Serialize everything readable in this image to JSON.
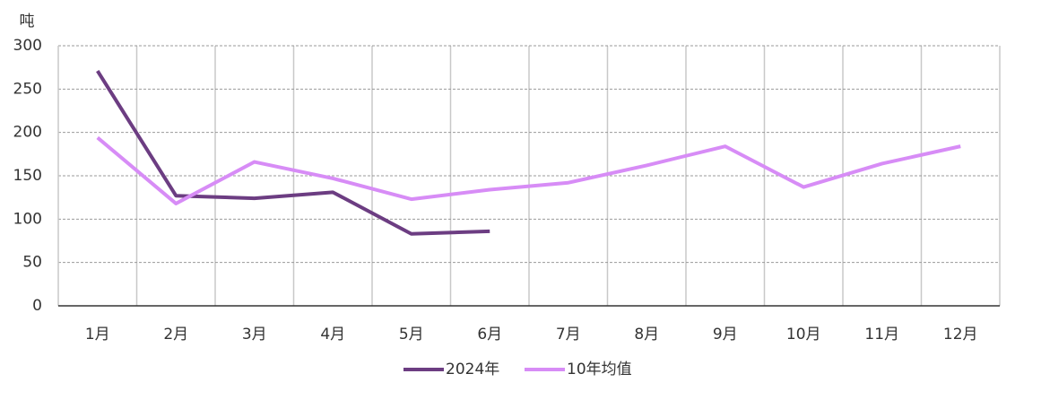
{
  "chart_data": {
    "type": "line",
    "y_unit": "吨",
    "categories": [
      "1月",
      "2月",
      "3月",
      "4月",
      "5月",
      "6月",
      "7月",
      "8月",
      "9月",
      "10月",
      "11月",
      "12月"
    ],
    "series": [
      {
        "name": "2024年",
        "color": "#6c3d82",
        "values": [
          271,
          127,
          124,
          131,
          83,
          86,
          null,
          null,
          null,
          null,
          null,
          null
        ]
      },
      {
        "name": "10年均值",
        "color": "#d78cf6",
        "values": [
          194,
          118,
          166,
          147,
          123,
          134,
          142,
          162,
          184,
          137,
          164,
          184
        ]
      }
    ],
    "ylim": [
      0,
      300
    ],
    "yticks": [
      0,
      50,
      100,
      150,
      200,
      250,
      300
    ],
    "grid": true
  }
}
